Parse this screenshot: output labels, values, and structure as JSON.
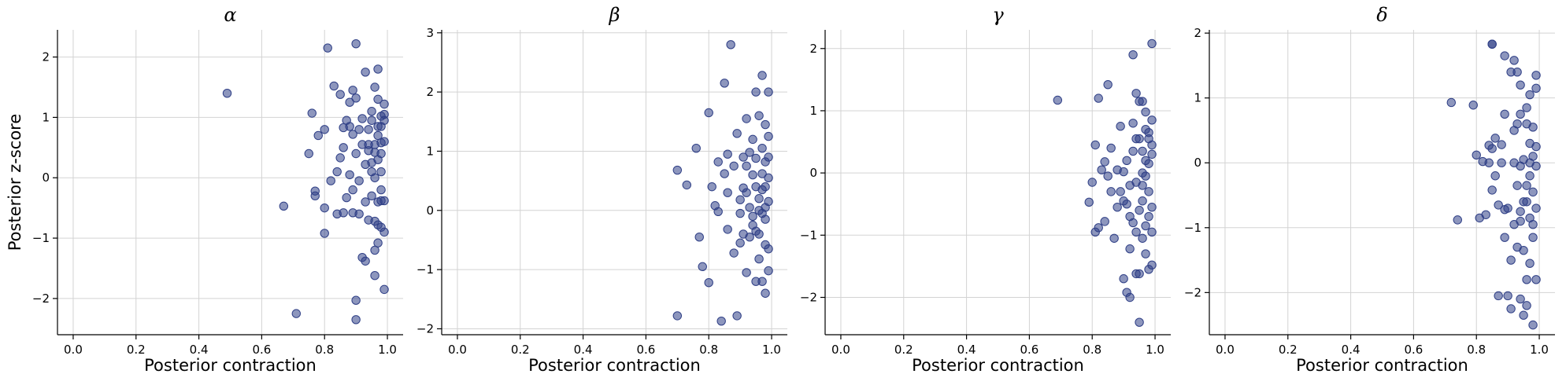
{
  "chart_data": [
    {
      "type": "scatter",
      "title": "α",
      "xlabel": "Posterior contraction",
      "ylabel": "Posterior z-score",
      "xlim": [
        -0.05,
        1.05
      ],
      "ylim": [
        -2.6,
        2.45
      ],
      "xticks": [
        "0.0",
        "0.2",
        "0.4",
        "0.6",
        "0.8",
        "1.0"
      ],
      "yticks": [
        "−2",
        "−1",
        "0",
        "1",
        "2"
      ],
      "grid": true,
      "point_color": "#2f3f86",
      "points": [
        [
          0.49,
          1.4
        ],
        [
          0.67,
          -0.47
        ],
        [
          0.71,
          -2.25
        ],
        [
          0.75,
          0.4
        ],
        [
          0.76,
          1.07
        ],
        [
          0.77,
          -0.22
        ],
        [
          0.77,
          -0.3
        ],
        [
          0.78,
          0.7
        ],
        [
          0.8,
          0.8
        ],
        [
          0.8,
          -0.5
        ],
        [
          0.8,
          -0.92
        ],
        [
          0.81,
          2.15
        ],
        [
          0.82,
          -0.05
        ],
        [
          0.83,
          1.52
        ],
        [
          0.84,
          -0.6
        ],
        [
          0.84,
          0.1
        ],
        [
          0.85,
          1.38
        ],
        [
          0.85,
          0.33
        ],
        [
          0.86,
          -0.58
        ],
        [
          0.86,
          0.83
        ],
        [
          0.86,
          0.5
        ],
        [
          0.87,
          0.95
        ],
        [
          0.87,
          -0.33
        ],
        [
          0.88,
          0.85
        ],
        [
          0.88,
          1.25
        ],
        [
          0.88,
          0.05
        ],
        [
          0.89,
          1.45
        ],
        [
          0.89,
          0.72
        ],
        [
          0.89,
          -0.58
        ],
        [
          0.89,
          -0.2
        ],
        [
          0.9,
          2.22
        ],
        [
          0.9,
          1.32
        ],
        [
          0.9,
          0.4
        ],
        [
          0.9,
          -2.03
        ],
        [
          0.9,
          -2.35
        ],
        [
          0.91,
          0.8
        ],
        [
          0.91,
          -0.05
        ],
        [
          0.91,
          -0.6
        ],
        [
          0.92,
          0.98
        ],
        [
          0.92,
          0.55
        ],
        [
          0.92,
          -1.32
        ],
        [
          0.93,
          1.75
        ],
        [
          0.93,
          0.22
        ],
        [
          0.93,
          -0.4
        ],
        [
          0.93,
          -1.38
        ],
        [
          0.94,
          0.8
        ],
        [
          0.94,
          0.45
        ],
        [
          0.94,
          0.55
        ],
        [
          0.94,
          -0.7
        ],
        [
          0.95,
          1.1
        ],
        [
          0.95,
          0.25
        ],
        [
          0.95,
          0.1
        ],
        [
          0.95,
          -0.3
        ],
        [
          0.96,
          1.5
        ],
        [
          0.96,
          0.55
        ],
        [
          0.96,
          0.42
        ],
        [
          0.96,
          -0.72
        ],
        [
          0.96,
          -1.2
        ],
        [
          0.96,
          -1.62
        ],
        [
          0.97,
          1.8
        ],
        [
          0.97,
          1.3
        ],
        [
          0.97,
          0.85
        ],
        [
          0.97,
          0.3
        ],
        [
          0.97,
          -0.4
        ],
        [
          0.97,
          -0.78
        ],
        [
          0.97,
          -1.08
        ],
        [
          0.98,
          1.02
        ],
        [
          0.98,
          0.85
        ],
        [
          0.98,
          0.58
        ],
        [
          0.98,
          0.1
        ],
        [
          0.98,
          -0.2
        ],
        [
          0.98,
          -0.82
        ],
        [
          0.99,
          1.22
        ],
        [
          0.99,
          1.05
        ],
        [
          0.99,
          0.95
        ],
        [
          0.99,
          0.6
        ],
        [
          0.99,
          -0.38
        ],
        [
          0.99,
          -0.9
        ],
        [
          0.99,
          -1.85
        ],
        [
          0.98,
          0.4
        ],
        [
          0.98,
          -0.38
        ],
        [
          0.97,
          0.7
        ],
        [
          0.96,
          0.0
        ],
        [
          0.95,
          0.95
        ]
      ]
    },
    {
      "type": "scatter",
      "title": "β",
      "xlabel": "Posterior contraction",
      "ylabel": "",
      "xlim": [
        -0.05,
        1.05
      ],
      "ylim": [
        -2.1,
        3.05
      ],
      "xticks": [
        "0.0",
        "0.2",
        "0.4",
        "0.6",
        "0.8",
        "1.0"
      ],
      "yticks": [
        "−2",
        "−1",
        "0",
        "1",
        "2",
        "3"
      ],
      "grid": true,
      "point_color": "#2f3f86",
      "points": [
        [
          0.7,
          0.68
        ],
        [
          0.7,
          -1.78
        ],
        [
          0.73,
          0.43
        ],
        [
          0.76,
          1.05
        ],
        [
          0.77,
          -0.45
        ],
        [
          0.78,
          -0.95
        ],
        [
          0.8,
          1.65
        ],
        [
          0.8,
          -1.22
        ],
        [
          0.81,
          0.4
        ],
        [
          0.82,
          0.08
        ],
        [
          0.83,
          0.82
        ],
        [
          0.83,
          -0.02
        ],
        [
          0.84,
          -1.87
        ],
        [
          0.85,
          0.62
        ],
        [
          0.85,
          2.15
        ],
        [
          0.86,
          0.95
        ],
        [
          0.86,
          0.3
        ],
        [
          0.86,
          -0.32
        ],
        [
          0.87,
          2.8
        ],
        [
          0.88,
          0.75
        ],
        [
          0.88,
          -0.72
        ],
        [
          0.89,
          1.3
        ],
        [
          0.89,
          -1.78
        ],
        [
          0.9,
          0.18
        ],
        [
          0.9,
          -0.55
        ],
        [
          0.91,
          0.9
        ],
        [
          0.91,
          0.38
        ],
        [
          0.91,
          -0.4
        ],
        [
          0.92,
          1.55
        ],
        [
          0.92,
          0.3
        ],
        [
          0.92,
          -1.05
        ],
        [
          0.93,
          0.98
        ],
        [
          0.93,
          0.05
        ],
        [
          0.93,
          -0.45
        ],
        [
          0.94,
          1.2
        ],
        [
          0.94,
          0.6
        ],
        [
          0.94,
          -0.1
        ],
        [
          0.95,
          2.0
        ],
        [
          0.95,
          0.88
        ],
        [
          0.95,
          -0.35
        ],
        [
          0.95,
          -1.2
        ],
        [
          0.96,
          1.6
        ],
        [
          0.96,
          0.2
        ],
        [
          0.96,
          -0.4
        ],
        [
          0.96,
          -0.82
        ],
        [
          0.97,
          2.28
        ],
        [
          0.97,
          1.05
        ],
        [
          0.97,
          0.62
        ],
        [
          0.97,
          -0.05
        ],
        [
          0.97,
          -1.2
        ],
        [
          0.98,
          1.45
        ],
        [
          0.98,
          0.82
        ],
        [
          0.98,
          0.4
        ],
        [
          0.98,
          -0.15
        ],
        [
          0.98,
          -0.58
        ],
        [
          0.98,
          -1.4
        ],
        [
          0.99,
          2.0
        ],
        [
          0.99,
          1.25
        ],
        [
          0.99,
          0.9
        ],
        [
          0.99,
          0.15
        ],
        [
          0.99,
          -0.65
        ],
        [
          0.99,
          -1.02
        ],
        [
          0.97,
          0.35
        ],
        [
          0.96,
          0.0
        ],
        [
          0.94,
          -0.25
        ],
        [
          0.92,
          0.75
        ],
        [
          0.9,
          -0.05
        ],
        [
          0.99,
          0.55
        ],
        [
          0.98,
          0.05
        ],
        [
          0.95,
          0.4
        ]
      ]
    },
    {
      "type": "scatter",
      "title": "γ",
      "xlabel": "Posterior contraction",
      "ylabel": "",
      "xlim": [
        -0.05,
        1.05
      ],
      "ylim": [
        -2.6,
        2.3
      ],
      "xticks": [
        "0.0",
        "0.2",
        "0.4",
        "0.6",
        "0.8",
        "1.0"
      ],
      "yticks": [
        "−2",
        "−1",
        "0",
        "1",
        "2"
      ],
      "grid": true,
      "point_color": "#2f3f86",
      "points": [
        [
          0.69,
          1.17
        ],
        [
          0.79,
          -0.47
        ],
        [
          0.8,
          -0.15
        ],
        [
          0.81,
          -0.95
        ],
        [
          0.81,
          0.45
        ],
        [
          0.82,
          1.2
        ],
        [
          0.82,
          -0.88
        ],
        [
          0.83,
          0.05
        ],
        [
          0.84,
          0.18
        ],
        [
          0.84,
          -0.78
        ],
        [
          0.85,
          1.42
        ],
        [
          0.85,
          -0.05
        ],
        [
          0.86,
          -0.3
        ],
        [
          0.86,
          0.4
        ],
        [
          0.87,
          -1.05
        ],
        [
          0.88,
          0.05
        ],
        [
          0.88,
          -0.55
        ],
        [
          0.89,
          0.75
        ],
        [
          0.89,
          -0.3
        ],
        [
          0.9,
          -1.7
        ],
        [
          0.9,
          0.02
        ],
        [
          0.91,
          -1.92
        ],
        [
          0.91,
          -0.5
        ],
        [
          0.91,
          0.2
        ],
        [
          0.92,
          -1.22
        ],
        [
          0.92,
          -2.0
        ],
        [
          0.92,
          -0.2
        ],
        [
          0.93,
          1.9
        ],
        [
          0.93,
          0.8
        ],
        [
          0.93,
          -0.8
        ],
        [
          0.94,
          0.55
        ],
        [
          0.94,
          1.28
        ],
        [
          0.94,
          -0.15
        ],
        [
          0.94,
          -1.62
        ],
        [
          0.95,
          0.55
        ],
        [
          0.95,
          -0.6
        ],
        [
          0.95,
          -2.4
        ],
        [
          0.95,
          -1.62
        ],
        [
          0.96,
          1.15
        ],
        [
          0.96,
          0.35
        ],
        [
          0.96,
          -0.45
        ],
        [
          0.96,
          -1.05
        ],
        [
          0.97,
          0.98
        ],
        [
          0.97,
          0.7
        ],
        [
          0.97,
          0.2
        ],
        [
          0.97,
          -0.85
        ],
        [
          0.97,
          -1.3
        ],
        [
          0.98,
          0.55
        ],
        [
          0.98,
          0.15
        ],
        [
          0.98,
          -0.3
        ],
        [
          0.98,
          -1.55
        ],
        [
          0.99,
          2.08
        ],
        [
          0.99,
          0.85
        ],
        [
          0.99,
          0.45
        ],
        [
          0.99,
          -0.55
        ],
        [
          0.99,
          -0.95
        ],
        [
          0.99,
          -1.48
        ],
        [
          0.96,
          0.0
        ],
        [
          0.95,
          1.15
        ],
        [
          0.93,
          0.35
        ],
        [
          0.92,
          -0.7
        ],
        [
          0.9,
          -0.45
        ],
        [
          0.98,
          0.65
        ],
        [
          0.96,
          -0.2
        ],
        [
          0.94,
          -0.95
        ],
        [
          0.97,
          -0.05
        ],
        [
          0.99,
          0.3
        ],
        [
          0.98,
          -0.7
        ]
      ]
    },
    {
      "type": "scatter",
      "title": "δ",
      "xlabel": "Posterior contraction",
      "ylabel": "",
      "xlim": [
        -0.05,
        1.05
      ],
      "ylim": [
        -2.65,
        2.05
      ],
      "xticks": [
        "0.0",
        "0.2",
        "0.4",
        "0.6",
        "0.8",
        "1.0"
      ],
      "yticks": [
        "−2",
        "−1",
        "0",
        "1",
        "2"
      ],
      "grid": true,
      "point_color": "#2f3f86",
      "points": [
        [
          0.72,
          0.93
        ],
        [
          0.74,
          -0.88
        ],
        [
          0.79,
          0.89
        ],
        [
          0.8,
          0.12
        ],
        [
          0.81,
          -0.85
        ],
        [
          0.82,
          0.02
        ],
        [
          0.83,
          -0.8
        ],
        [
          0.84,
          0.0
        ],
        [
          0.84,
          0.27
        ],
        [
          0.85,
          1.83
        ],
        [
          0.85,
          0.22
        ],
        [
          0.85,
          -0.42
        ],
        [
          0.86,
          0.38
        ],
        [
          0.86,
          -0.2
        ],
        [
          0.87,
          -0.65
        ],
        [
          0.87,
          -2.05
        ],
        [
          0.88,
          0.28
        ],
        [
          0.88,
          0.0
        ],
        [
          0.89,
          1.65
        ],
        [
          0.89,
          0.75
        ],
        [
          0.89,
          -0.72
        ],
        [
          0.89,
          -1.15
        ],
        [
          0.9,
          -0.7
        ],
        [
          0.9,
          -2.05
        ],
        [
          0.91,
          1.4
        ],
        [
          0.91,
          -1.5
        ],
        [
          0.91,
          -2.25
        ],
        [
          0.92,
          1.58
        ],
        [
          0.92,
          0.5
        ],
        [
          0.92,
          0.0
        ],
        [
          0.92,
          -0.95
        ],
        [
          0.93,
          1.4
        ],
        [
          0.93,
          0.6
        ],
        [
          0.93,
          -0.35
        ],
        [
          0.93,
          -1.3
        ],
        [
          0.94,
          1.2
        ],
        [
          0.94,
          0.75
        ],
        [
          0.94,
          -0.05
        ],
        [
          0.94,
          -0.75
        ],
        [
          0.94,
          -2.1
        ],
        [
          0.95,
          0.05
        ],
        [
          0.95,
          -1.35
        ],
        [
          0.95,
          -2.35
        ],
        [
          0.96,
          0.85
        ],
        [
          0.96,
          0.6
        ],
        [
          0.96,
          -0.35
        ],
        [
          0.96,
          -1.8
        ],
        [
          0.96,
          -2.2
        ],
        [
          0.97,
          1.05
        ],
        [
          0.97,
          0.3
        ],
        [
          0.97,
          -0.2
        ],
        [
          0.97,
          -0.85
        ],
        [
          0.97,
          -1.55
        ],
        [
          0.98,
          0.55
        ],
        [
          0.98,
          0.1
        ],
        [
          0.98,
          -0.45
        ],
        [
          0.98,
          -1.15
        ],
        [
          0.98,
          -2.5
        ],
        [
          0.99,
          1.35
        ],
        [
          0.99,
          1.15
        ],
        [
          0.99,
          0.25
        ],
        [
          0.99,
          -0.05
        ],
        [
          0.99,
          -0.7
        ],
        [
          0.99,
          -1.8
        ],
        [
          0.85,
          1.83
        ],
        [
          0.94,
          -0.9
        ],
        [
          0.96,
          -0.6
        ],
        [
          0.98,
          -0.95
        ],
        [
          0.97,
          0.0
        ],
        [
          0.95,
          -0.6
        ]
      ]
    }
  ]
}
